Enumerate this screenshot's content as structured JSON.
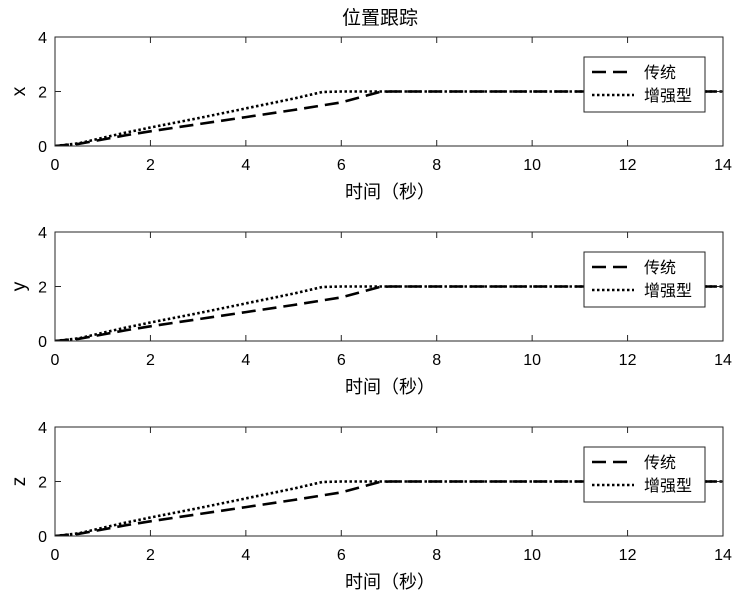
{
  "figure_title": "位置跟踪",
  "chart_data": [
    {
      "type": "line",
      "ylabel": "x",
      "xlabel": "时间（秒）",
      "xlim": [
        0,
        14
      ],
      "ylim": [
        0,
        4
      ],
      "xticks": [
        "0",
        "2",
        "4",
        "6",
        "8",
        "10",
        "12",
        "14"
      ],
      "yticks": [
        "0",
        "2",
        "4"
      ],
      "grid": false,
      "legend_position": "top-right",
      "series": [
        {
          "name": "传统",
          "style": "dashed",
          "x": [
            0,
            0.5,
            1,
            1.5,
            2,
            3,
            4,
            5,
            6,
            6.8,
            7,
            8,
            10,
            12,
            14
          ],
          "y": [
            0,
            0.08,
            0.24,
            0.4,
            0.54,
            0.8,
            1.06,
            1.32,
            1.6,
            1.98,
            2,
            2,
            2,
            2,
            2
          ]
        },
        {
          "name": "增强型",
          "style": "dotted",
          "x": [
            0,
            0.5,
            1,
            1.5,
            2,
            3,
            4,
            5,
            5.6,
            6,
            8,
            10,
            12,
            14
          ],
          "y": [
            0,
            0.1,
            0.3,
            0.5,
            0.68,
            1.02,
            1.38,
            1.74,
            1.98,
            2,
            2,
            2,
            2,
            2
          ]
        }
      ]
    },
    {
      "type": "line",
      "ylabel": "y",
      "xlabel": "时间（秒）",
      "xlim": [
        0,
        14
      ],
      "ylim": [
        0,
        4
      ],
      "xticks": [
        "0",
        "2",
        "4",
        "6",
        "8",
        "10",
        "12",
        "14"
      ],
      "yticks": [
        "0",
        "2",
        "4"
      ],
      "grid": false,
      "legend_position": "top-right",
      "series": [
        {
          "name": "传统",
          "style": "dashed",
          "x": [
            0,
            0.5,
            1,
            1.5,
            2,
            3,
            4,
            5,
            6,
            6.8,
            7,
            8,
            10,
            12,
            14
          ],
          "y": [
            0,
            0.08,
            0.24,
            0.4,
            0.54,
            0.8,
            1.06,
            1.32,
            1.6,
            1.98,
            2,
            2,
            2,
            2,
            2
          ]
        },
        {
          "name": "增强型",
          "style": "dotted",
          "x": [
            0,
            0.5,
            1,
            1.5,
            2,
            3,
            4,
            5,
            5.6,
            6,
            8,
            10,
            12,
            14
          ],
          "y": [
            0,
            0.1,
            0.3,
            0.5,
            0.68,
            1.02,
            1.38,
            1.74,
            1.98,
            2,
            2,
            2,
            2,
            2
          ]
        }
      ]
    },
    {
      "type": "line",
      "ylabel": "z",
      "xlabel": "时间（秒）",
      "xlim": [
        0,
        14
      ],
      "ylim": [
        0,
        4
      ],
      "xticks": [
        "0",
        "2",
        "4",
        "6",
        "8",
        "10",
        "12",
        "14"
      ],
      "yticks": [
        "0",
        "2",
        "4"
      ],
      "grid": false,
      "legend_position": "top-right",
      "series": [
        {
          "name": "传统",
          "style": "dashed",
          "x": [
            0,
            0.5,
            1,
            1.5,
            2,
            3,
            4,
            5,
            6,
            6.8,
            7,
            8,
            10,
            12,
            14
          ],
          "y": [
            0,
            0.08,
            0.24,
            0.4,
            0.54,
            0.8,
            1.06,
            1.32,
            1.6,
            1.98,
            2,
            2,
            2,
            2,
            2
          ]
        },
        {
          "name": "增强型",
          "style": "dotted",
          "x": [
            0,
            0.5,
            1,
            1.5,
            2,
            3,
            4,
            5,
            5.6,
            6,
            8,
            10,
            12,
            14
          ],
          "y": [
            0,
            0.1,
            0.3,
            0.5,
            0.68,
            1.02,
            1.38,
            1.74,
            1.98,
            2,
            2,
            2,
            2,
            2
          ]
        }
      ]
    }
  ]
}
